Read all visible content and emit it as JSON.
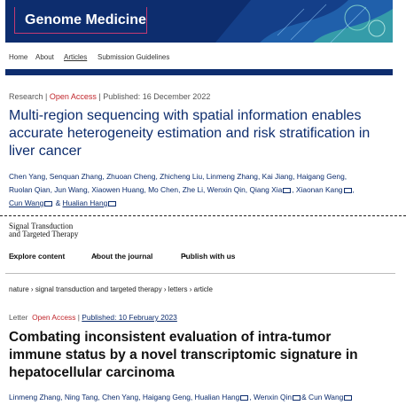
{
  "genome_medicine": {
    "journal_title": "Genome Medicine",
    "nav": [
      "Home",
      "About",
      "Articles",
      "Submission Guidelines"
    ],
    "meta": {
      "type": "Research",
      "open_access": "Open Access",
      "published": "Published: 16 December 2022"
    },
    "title": "Multi-region sequencing with spatial information enables accurate heterogeneity estimation and risk stratification in liver cancer",
    "authors": [
      "Chen Yang",
      "Senquan Zhang",
      "Zhuoan Cheng",
      "Zhicheng Liu",
      "Linmeng Zhang",
      "Kai Jiang",
      "Haigang Geng",
      "Ruolan Qian",
      "Jun Wang",
      "Xiaowen Huang",
      "Mo Chen",
      "Zhe Li",
      "Wenxin Qin",
      "Qiang Xia",
      "Xiaonan Kang",
      "Cun Wang",
      "Hualian Hang"
    ],
    "authors_conj": "&",
    "colors": {
      "navy": "#0d2d6e",
      "accent": "#c33a72"
    }
  },
  "sttt": {
    "logo_line1": "Signal Transduction",
    "logo_line2": "and Targeted Therapy",
    "nav": [
      "Explore content",
      "About the journal",
      "Publish with us"
    ],
    "breadcrumb": [
      "nature",
      "signal transduction and targeted therapy",
      "letters",
      "article"
    ],
    "meta": {
      "type": "Letter",
      "open_access": "Open Access",
      "published": "Published: 10 February 2023"
    },
    "title": "Combating inconsistent evaluation of intra-tumor immune status by a novel transcriptomic signature in hepatocellular carcinoma",
    "authors": [
      "Linmeng Zhang",
      "Ning Tang",
      "Chen Yang",
      "Haigang Geng",
      "Hualian Hang",
      "Wenxin Qin",
      "Cun Wang"
    ],
    "authors_conj": "&"
  }
}
